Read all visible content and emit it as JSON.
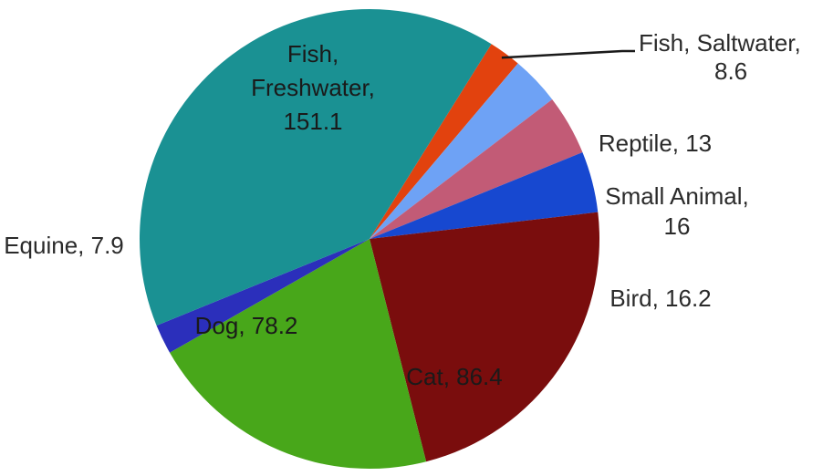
{
  "chart_data": {
    "type": "pie",
    "title": "",
    "slices": [
      {
        "name": "Fish, Saltwater",
        "value": 8.6,
        "color": "#e2420e",
        "label_lines": [
          "Fish, Saltwater,",
          "8.6"
        ]
      },
      {
        "name": "Reptile",
        "value": 13,
        "color": "#6ea2f5",
        "label_lines": [
          "Reptile, 13"
        ]
      },
      {
        "name": "Small Animal",
        "value": 16,
        "color": "#c25b76",
        "label_lines": [
          "Small Animal,",
          "16"
        ]
      },
      {
        "name": "Bird",
        "value": 16.2,
        "color": "#1748d0",
        "label_lines": [
          "Bird, 16.2"
        ]
      },
      {
        "name": "Cat",
        "value": 86.4,
        "color": "#7a0d0d",
        "label_lines": [
          "Cat, 86.4"
        ]
      },
      {
        "name": "Dog",
        "value": 78.2,
        "color": "#48a71a",
        "label_lines": [
          "Dog, 78.2"
        ]
      },
      {
        "name": "Equine",
        "value": 7.9,
        "color": "#2b2fbb",
        "label_lines": [
          "Equine, 7.9"
        ]
      },
      {
        "name": "Fish, Freshwater",
        "value": 151.1,
        "color": "#1a9193",
        "label_lines": [
          "Fish,",
          "Freshwater,",
          "151.1"
        ]
      }
    ]
  }
}
